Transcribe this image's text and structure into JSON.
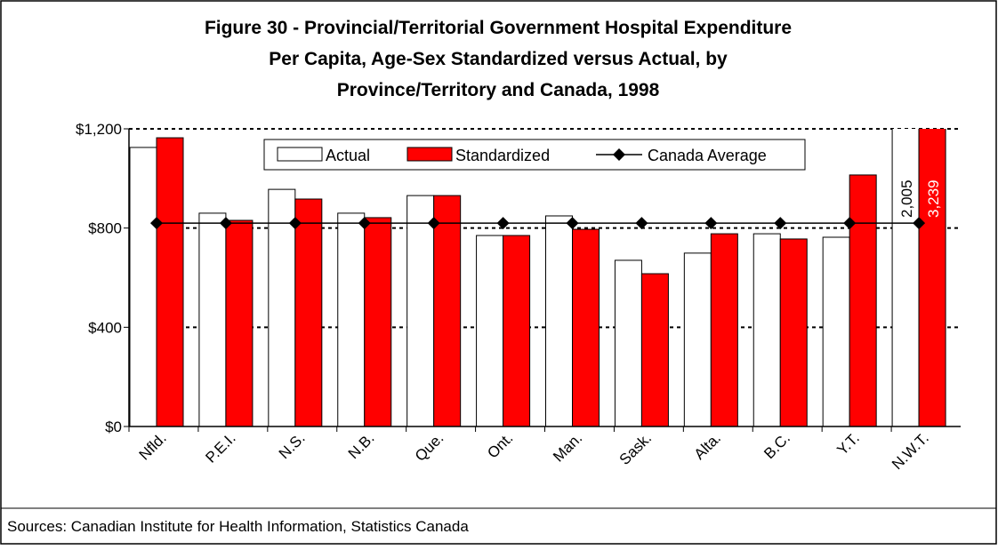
{
  "chart_data": {
    "type": "bar",
    "title": [
      "Figure 30 - Provincial/Territorial Government Hospital Expenditure",
      "Per Capita, Age-Sex Standardized versus Actual, by",
      "Province/Territory and Canada, 1998"
    ],
    "categories": [
      "Nfld.",
      "P.E.I.",
      "N.S.",
      "N.B.",
      "Que.",
      "Ont.",
      "Man.",
      "Sask.",
      "Alta.",
      "B.C.",
      "Y.T.",
      "N.W.T."
    ],
    "series": [
      {
        "name": "Actual",
        "color": "#ffffff",
        "values": [
          1125,
          860,
          956,
          860,
          931,
          770,
          849,
          670,
          699,
          777,
          763,
          2005
        ],
        "value_labels": [
          null,
          null,
          null,
          null,
          null,
          null,
          null,
          null,
          null,
          null,
          null,
          "2,005"
        ]
      },
      {
        "name": "Standardized",
        "color": "#ff0000",
        "values": [
          1164,
          831,
          917,
          842,
          931,
          770,
          795,
          616,
          777,
          756,
          1014,
          3239
        ],
        "value_labels": [
          null,
          null,
          null,
          null,
          null,
          null,
          null,
          null,
          null,
          null,
          null,
          "3,239"
        ]
      },
      {
        "name": "Canada Average",
        "type": "line",
        "color": "#000000",
        "values": [
          820,
          820,
          820,
          820,
          820,
          820,
          820,
          820,
          820,
          820,
          820,
          820
        ]
      }
    ],
    "ylim": [
      0,
      1200
    ],
    "yticks": [
      {
        "value": 0,
        "label": "$0"
      },
      {
        "value": 400,
        "label": "$400"
      },
      {
        "value": 800,
        "label": "$800"
      },
      {
        "value": 1200,
        "label": "$1,200"
      }
    ],
    "grid": true,
    "legend": "top",
    "source": "Sources: Canadian Institute for Health Information, Statistics Canada"
  }
}
